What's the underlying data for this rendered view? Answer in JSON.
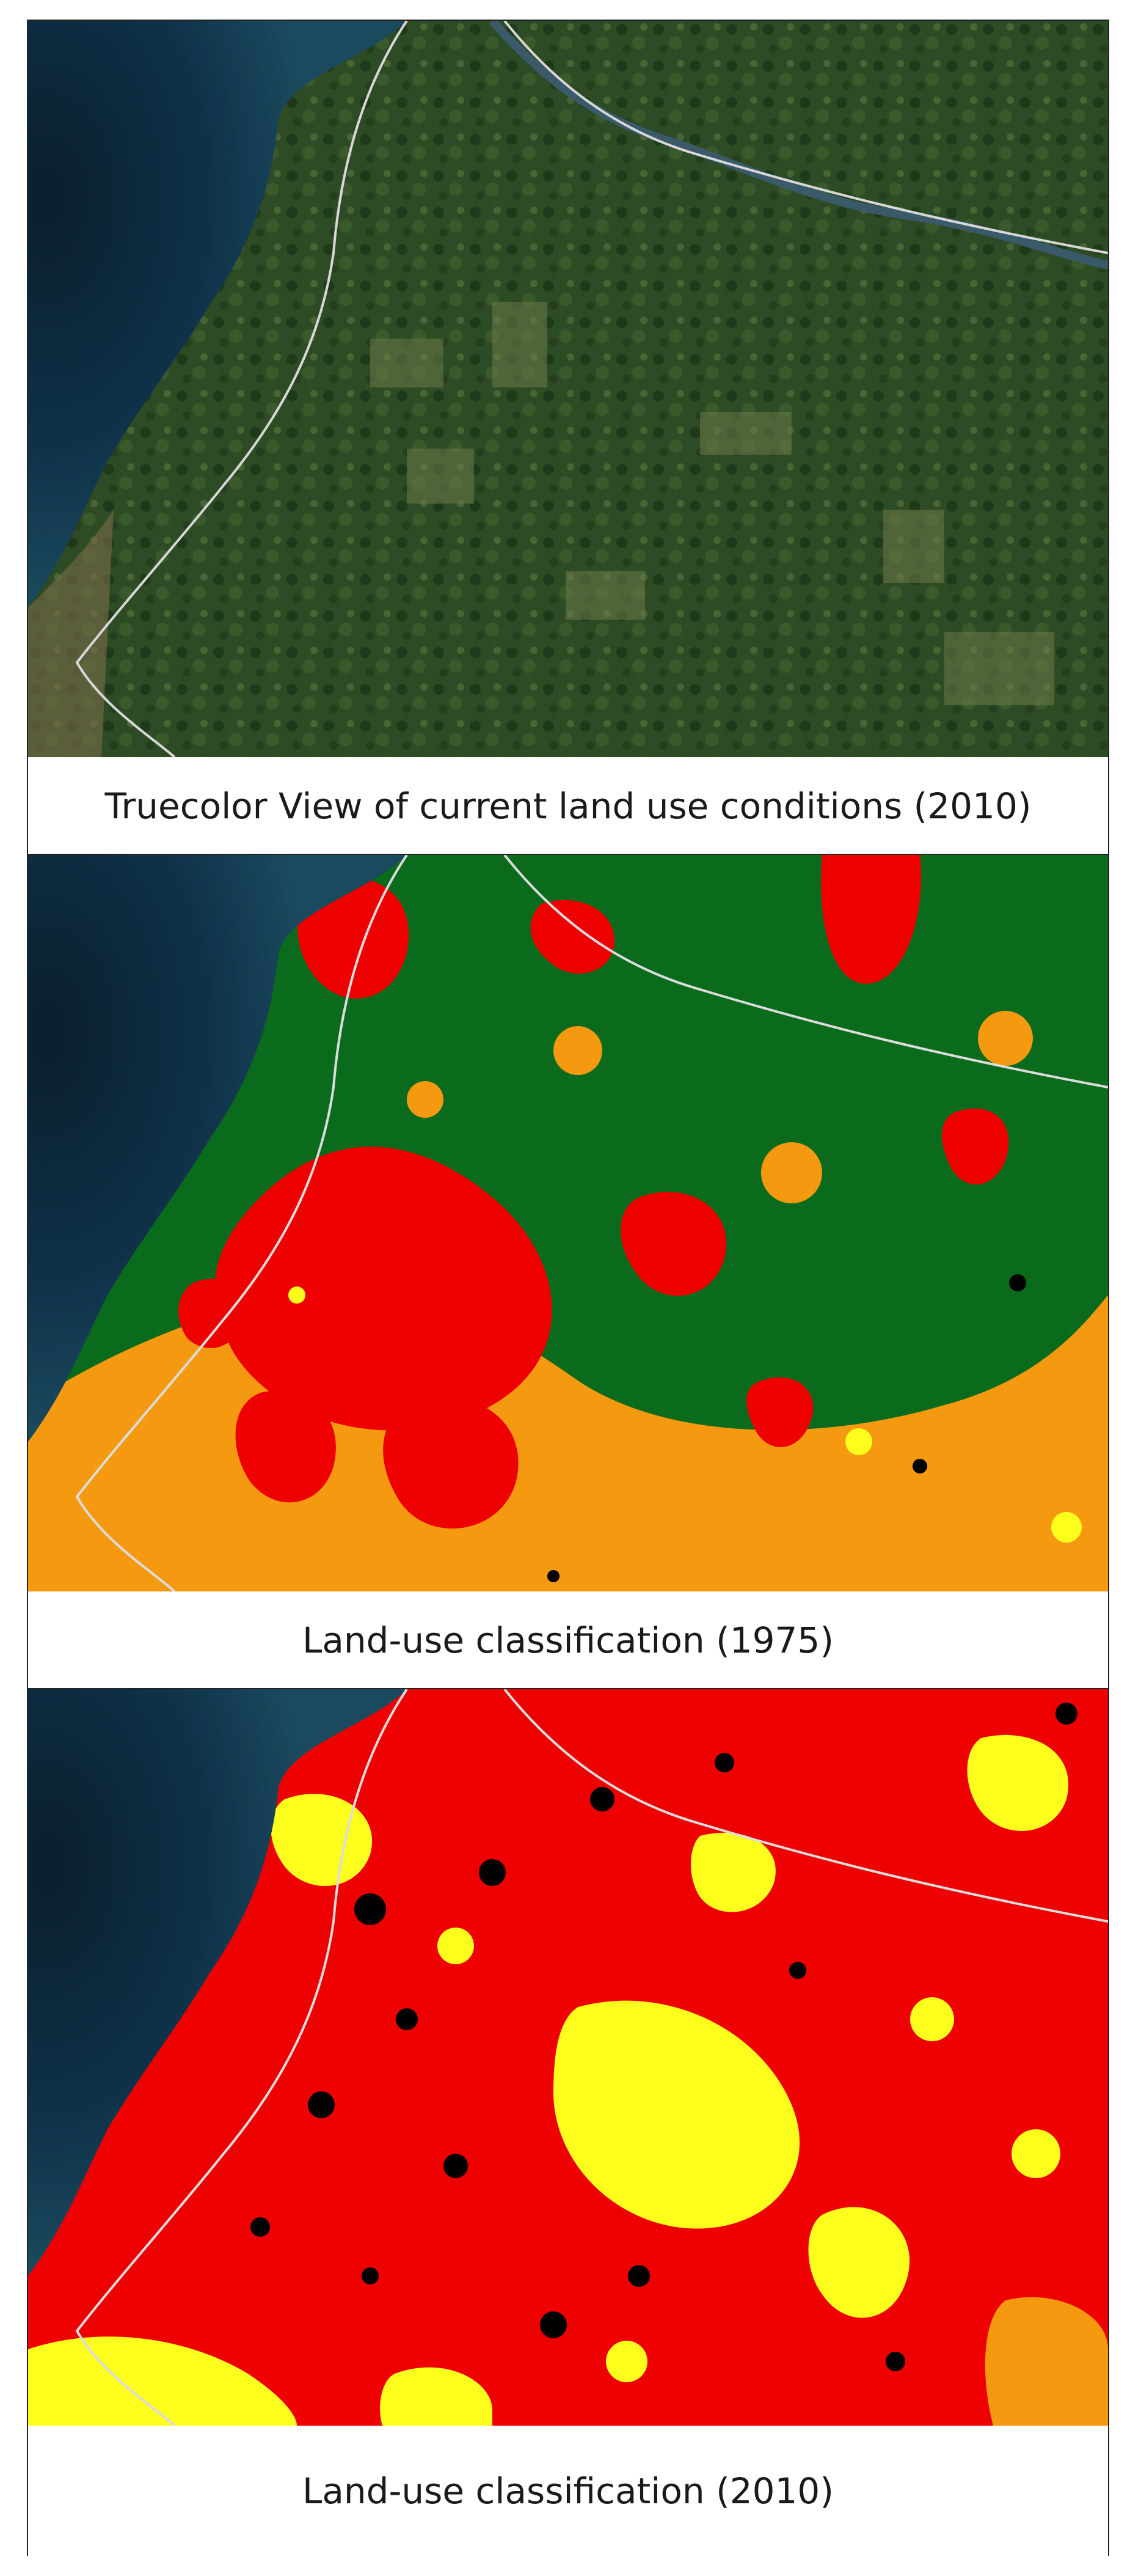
{
  "figure": {
    "panels": [
      {
        "caption": "Truecolor View of current land use conditions (2010)"
      },
      {
        "caption": "Land-use classification (1975)"
      },
      {
        "caption": "Land-use classification (2010)"
      }
    ]
  },
  "colors": {
    "sea": "#0d2b3e",
    "forest_true": "#2c4a22",
    "forest_class": "#0a6b1c",
    "urban_class": "#ee0000",
    "agri_class": "#f59a10",
    "bare_class": "#ffff1e",
    "black_class": "#000000",
    "boundary": "#dcdcdc"
  }
}
